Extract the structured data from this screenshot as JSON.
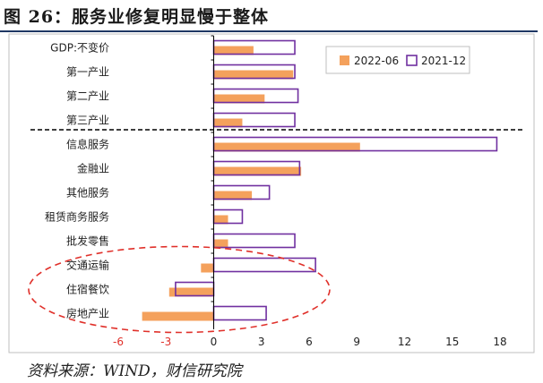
{
  "title": "图 26：服务业修复明显慢于整体",
  "source": "资料来源：WIND，财信研究院",
  "colors": {
    "series_2022_06": "#f4a15c",
    "series_2021_12_outline": "#7030a0",
    "annotation": "#e0302a",
    "divider": "#000000"
  },
  "chart_data": {
    "type": "bar",
    "orientation": "horizontal",
    "categories": [
      "GDP:不变价",
      "第一产业",
      "第二产业",
      "第三产业",
      "信息服务",
      "金融业",
      "其他服务",
      "租赁商务服务",
      "批发零售",
      "交通运输",
      "住宿餐饮",
      "房地产业"
    ],
    "series": [
      {
        "name": "2022-06",
        "style": "filled",
        "values": [
          2.5,
          5.0,
          3.2,
          1.8,
          9.2,
          5.5,
          2.4,
          0.9,
          0.9,
          -0.8,
          -2.8,
          -4.5
        ]
      },
      {
        "name": "2021-12",
        "style": "outlined",
        "values": [
          5.1,
          5.1,
          5.3,
          5.1,
          17.8,
          5.4,
          3.5,
          1.8,
          5.1,
          6.4,
          -2.4,
          3.3
        ]
      }
    ],
    "xticks": [
      "-6",
      "-3",
      "0",
      "3",
      "6",
      "9",
      "12",
      "15",
      "18"
    ],
    "xlim": [
      -6,
      18
    ],
    "legend": "top-right",
    "annotations": [
      "dashed separator between 第三产业 and 信息服务",
      "red dashed ellipse around 交通运输, 住宿餐饮, 房地产业"
    ]
  }
}
